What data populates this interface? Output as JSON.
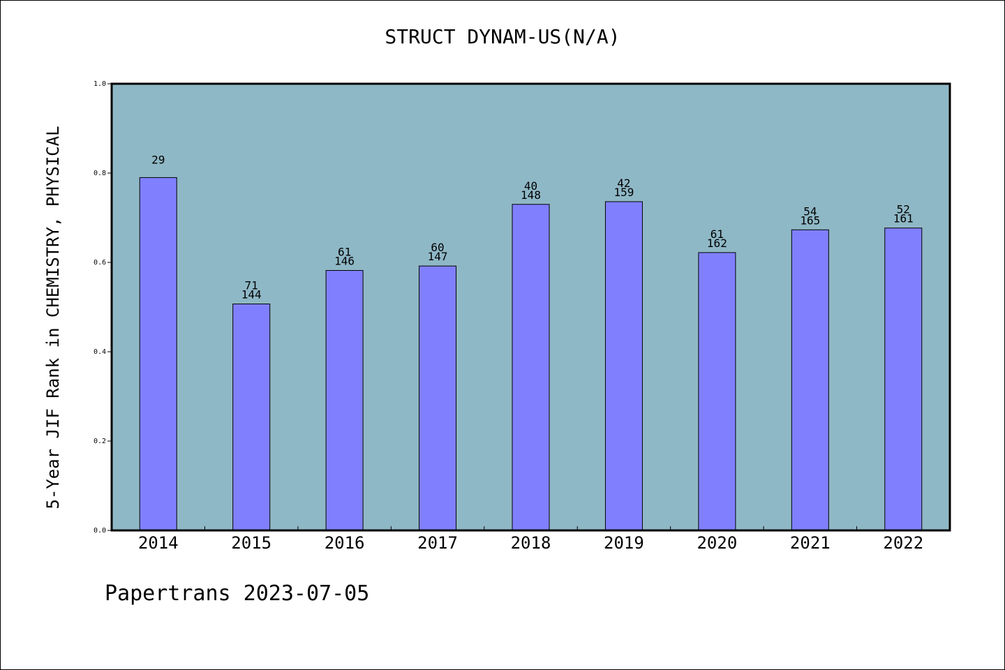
{
  "chart_data": {
    "type": "bar",
    "title": "STRUCT DYNAM-US(N/A)",
    "xlabel": "",
    "ylabel": "5-Year JIF Rank in CHEMISTRY, PHYSICAL",
    "ylim": [
      0.0,
      1.0
    ],
    "yticks": [
      "0.0",
      "0.2",
      "0.4",
      "0.6",
      "0.8",
      "1.0"
    ],
    "categories": [
      "2014",
      "2015",
      "2016",
      "2017",
      "2018",
      "2019",
      "2020",
      "2021",
      "2022"
    ],
    "values": [
      0.79,
      0.507,
      0.582,
      0.592,
      0.73,
      0.736,
      0.622,
      0.673,
      0.677
    ],
    "labels_top": [
      "29",
      "71",
      "61",
      "60",
      "40",
      "42",
      "61",
      "54",
      "52"
    ],
    "labels_bottom": [
      "",
      "144",
      "146",
      "147",
      "148",
      "159",
      "162",
      "165",
      "161"
    ],
    "grid": false,
    "colors": {
      "plot_bg": "#8fb8c6",
      "bar_fill": "#8080ff",
      "bar_stroke": "#000000"
    }
  },
  "footer": "Papertrans 2023-07-05"
}
